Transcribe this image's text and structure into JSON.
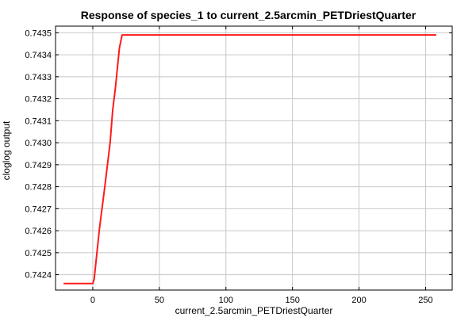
{
  "chart_data": {
    "type": "line",
    "title": "Response of species_1 to current_2.5arcmin_PETDriestQuarter",
    "xlabel": "current_2.5arcmin_PETDriestQuarter",
    "ylabel": "cloglog output",
    "xlim": [
      -28,
      270
    ],
    "ylim": [
      0.74233,
      0.74353
    ],
    "x_ticks": [
      0,
      50,
      100,
      150,
      200,
      250
    ],
    "y_ticks": [
      0.7424,
      0.7425,
      0.7426,
      0.7427,
      0.7428,
      0.7429,
      0.743,
      0.7431,
      0.7432,
      0.7433,
      0.7434,
      0.7435
    ],
    "y_tick_labels": [
      "0.7424",
      "0.7425",
      "0.7426",
      "0.7427",
      "0.7428",
      "0.7429",
      "0.7430",
      "0.7431",
      "0.7432",
      "0.7433",
      "0.7434",
      "0.7435"
    ],
    "x_tick_labels": [
      "0",
      "50",
      "100",
      "150",
      "200",
      "250"
    ],
    "grid": true,
    "series": [
      {
        "color": "#ff1a1a",
        "x": [
          -22,
          0,
          1,
          5,
          9,
          13,
          15,
          17,
          20,
          22,
          258
        ],
        "y": [
          0.74236,
          0.74236,
          0.74238,
          0.74261,
          0.7428,
          0.743,
          0.74315,
          0.74325,
          0.74343,
          0.74349,
          0.74349
        ]
      }
    ]
  }
}
